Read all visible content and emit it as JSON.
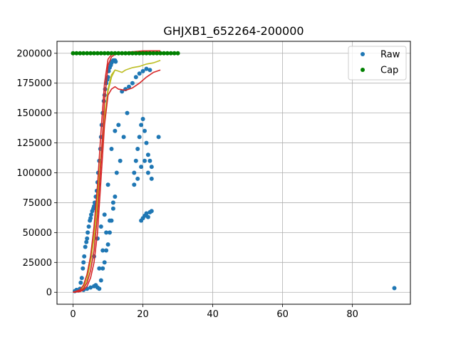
{
  "chart_data": {
    "type": "scatter",
    "title": "GHJXB1_652264-200000",
    "xlabel": "",
    "ylabel": "",
    "xlim": [
      -4.6,
      96.6
    ],
    "ylim": [
      -10000,
      210000
    ],
    "xticks": [
      0,
      20,
      40,
      60,
      80
    ],
    "yticks": [
      0,
      25000,
      50000,
      75000,
      100000,
      125000,
      150000,
      175000,
      200000
    ],
    "grid": true,
    "legend_position": "top-right",
    "colors": {
      "raw": "#1f77b4",
      "cap": "#008000",
      "curve_olive": "#bcbd22",
      "curve_red": "#d62728",
      "grid": "#b0b0b0"
    },
    "series": [
      {
        "name": "Raw",
        "marker": "circle",
        "x": [
          0.5,
          1.0,
          1.5,
          2.0,
          2.2,
          2.5,
          2.8,
          3.0,
          3.2,
          3.5,
          3.8,
          4.0,
          4.2,
          4.5,
          4.8,
          5.0,
          5.2,
          5.5,
          5.8,
          6.0,
          6.2,
          6.5,
          6.8,
          7.0,
          7.2,
          7.5,
          7.8,
          8.0,
          8.2,
          8.5,
          8.8,
          9.0,
          9.2,
          9.5,
          9.8,
          10.0,
          10.2,
          10.5,
          10.8,
          11.0,
          11.2,
          11.5,
          11.8,
          12.0,
          12.2,
          3.0,
          4.0,
          5.0,
          6.0,
          6.5,
          7.0,
          7.5,
          8.0,
          8.5,
          9.0,
          9.5,
          10.0,
          10.5,
          11.0,
          11.5,
          12.0,
          6.0,
          7.0,
          8.0,
          9.0,
          10.0,
          11.0,
          12.0,
          13.0,
          14.0,
          15.0,
          16.0,
          17.0,
          18.0,
          19.0,
          20.0,
          21.0,
          22.0,
          7.5,
          8.5,
          9.5,
          10.5,
          11.5,
          12.5,
          13.5,
          14.5,
          15.5,
          17.5,
          18.5,
          19.5,
          20.5,
          21.5,
          22.5,
          17.5,
          18.0,
          18.5,
          19.0,
          19.5,
          20.0,
          20.5,
          21.0,
          21.5,
          22.0,
          22.5,
          19.5,
          20.0,
          20.5,
          21.0,
          21.5,
          22.0,
          22.5,
          24.5,
          92.0
        ],
        "y": [
          1000,
          2000,
          1500,
          3000,
          8000,
          12000,
          20000,
          25000,
          30000,
          38000,
          42000,
          45000,
          50000,
          55000,
          60000,
          62000,
          65000,
          68000,
          70000,
          72000,
          75000,
          80000,
          85000,
          92000,
          100000,
          110000,
          120000,
          130000,
          140000,
          150000,
          160000,
          165000,
          170000,
          175000,
          178000,
          180000,
          185000,
          188000,
          190000,
          192000,
          193000,
          194000,
          194000,
          194000,
          193000,
          2000,
          3000,
          4000,
          5000,
          6000,
          4000,
          3000,
          10000,
          20000,
          25000,
          35000,
          40000,
          50000,
          60000,
          70000,
          80000,
          30000,
          45000,
          55000,
          65000,
          90000,
          120000,
          135000,
          140000,
          168000,
          170000,
          172000,
          175000,
          180000,
          183000,
          185000,
          187000,
          186000,
          20000,
          35000,
          50000,
          60000,
          75000,
          100000,
          110000,
          130000,
          150000,
          90000,
          95000,
          105000,
          110000,
          100000,
          95000,
          100000,
          110000,
          120000,
          130000,
          140000,
          145000,
          135000,
          125000,
          115000,
          110000,
          105000,
          60000,
          62000,
          64000,
          66000,
          63000,
          67000,
          68000,
          130000,
          3500
        ]
      },
      {
        "name": "Cap",
        "marker": "circle",
        "x": [
          0,
          1,
          2,
          3,
          4,
          5,
          6,
          7,
          8,
          9,
          10,
          11,
          12,
          13,
          14,
          15,
          16,
          17,
          18,
          19,
          20,
          21,
          22,
          23,
          24,
          25,
          26,
          27,
          28,
          29,
          30
        ],
        "y": [
          200000,
          200000,
          200000,
          200000,
          200000,
          200000,
          200000,
          200000,
          200000,
          200000,
          200000,
          200000,
          200000,
          200000,
          200000,
          200000,
          200000,
          200000,
          200000,
          200000,
          200000,
          200000,
          200000,
          200000,
          200000,
          200000,
          200000,
          200000,
          200000,
          200000,
          200000
        ]
      },
      {
        "marker": "line",
        "color_key": "curve_olive",
        "x": [
          0,
          2,
          3,
          4,
          5,
          6,
          7,
          8,
          9,
          10,
          11,
          12,
          13,
          14,
          15,
          17,
          19,
          21,
          23,
          25
        ],
        "y": [
          0,
          2000,
          6000,
          15000,
          30000,
          50000,
          80000,
          115000,
          148000,
          170000,
          182000,
          186000,
          185000,
          184000,
          186000,
          188000,
          189000,
          191000,
          192000,
          194000
        ]
      },
      {
        "marker": "line",
        "color_key": "curve_olive",
        "x": [
          0,
          2,
          3,
          4,
          5,
          6,
          7,
          8,
          9,
          10,
          11,
          12
        ],
        "y": [
          0,
          1000,
          4000,
          11000,
          25000,
          45000,
          75000,
          112000,
          145000,
          168000,
          180000,
          186000
        ]
      },
      {
        "marker": "line",
        "color_key": "curve_red",
        "x": [
          0,
          2,
          3,
          4,
          5,
          6,
          7,
          8,
          9,
          10,
          11,
          12,
          14,
          16,
          18,
          20,
          22,
          25
        ],
        "y": [
          0,
          1000,
          3000,
          8000,
          18000,
          35000,
          65000,
          110000,
          160000,
          190000,
          197000,
          199000,
          200000,
          201000,
          201000,
          201500,
          202000,
          202000
        ]
      },
      {
        "marker": "line",
        "color_key": "curve_red",
        "x": [
          0,
          2,
          3,
          4,
          5,
          6,
          7,
          8,
          9,
          10,
          11,
          12,
          13,
          15,
          17,
          19,
          21,
          23,
          25
        ],
        "y": [
          0,
          500,
          2000,
          5000,
          12000,
          25000,
          50000,
          95000,
          140000,
          165000,
          170000,
          172000,
          170000,
          169000,
          171000,
          175000,
          180000,
          184000,
          186000
        ]
      },
      {
        "marker": "line",
        "color_key": "curve_red",
        "x": [
          0,
          2,
          3,
          4,
          5,
          6,
          7,
          8,
          9,
          10,
          11,
          12,
          14,
          16,
          18,
          20,
          22,
          25
        ],
        "y": [
          0,
          2000,
          6000,
          15000,
          30000,
          55000,
          90000,
          135000,
          175000,
          195000,
          199000,
          200000,
          200000,
          201000,
          201500,
          202000,
          202000,
          202000
        ]
      }
    ]
  }
}
